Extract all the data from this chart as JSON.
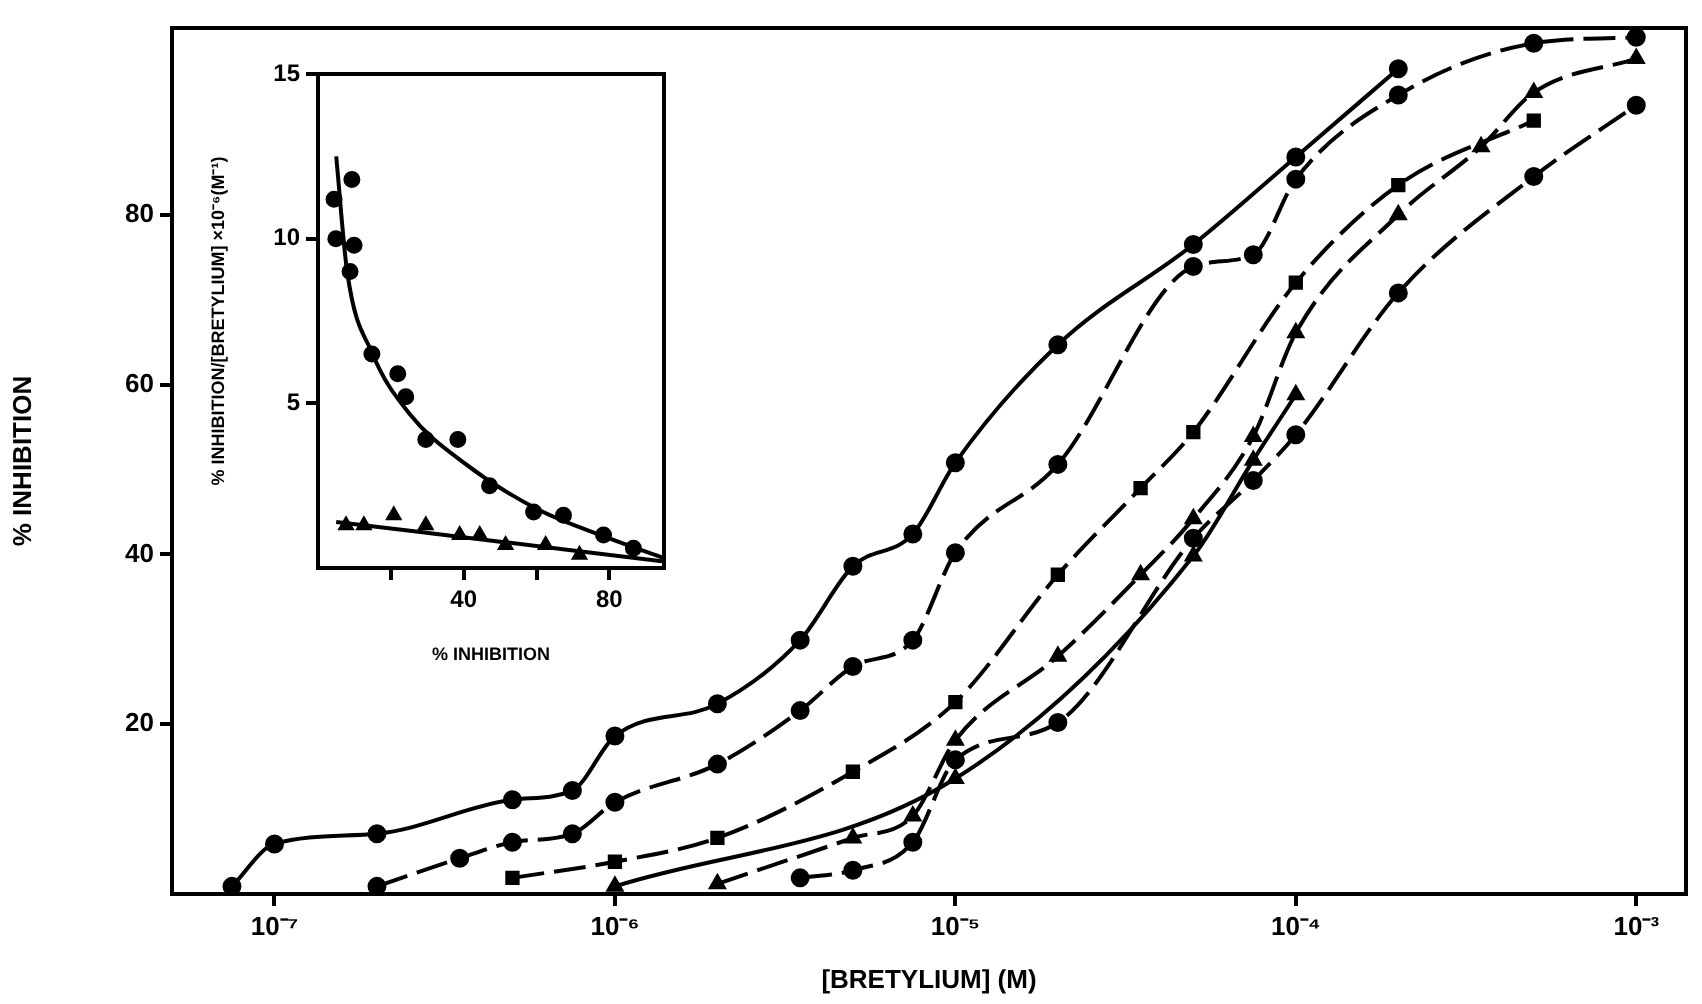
{
  "chart_data": [
    {
      "type": "line",
      "xlabel": "[BRETYLIUM] (M)",
      "ylabel": "% INHIBITION",
      "log": "x",
      "grid": false,
      "legend": false,
      "xlim": [
        5e-08,
        0.0014
      ],
      "ylim": [
        0,
        102
      ],
      "xticks": [
        {
          "value": 1e-07,
          "label": "10⁻⁷"
        },
        {
          "value": 1e-06,
          "label": "10⁻⁶"
        },
        {
          "value": 1e-05,
          "label": "10⁻⁵"
        },
        {
          "value": 0.0001,
          "label": "10⁻⁴"
        },
        {
          "value": 0.001,
          "label": "10⁻³"
        }
      ],
      "yticks": [
        20,
        40,
        60,
        80
      ],
      "series": [
        {
          "color": "#000000",
          "marker": "circle",
          "line_style": "solid",
          "x": [
            7.5e-08,
            1e-07,
            2e-07,
            5e-07,
            7.5e-07,
            1e-06,
            2e-06,
            3.5e-06,
            5e-06,
            7.5e-06,
            1e-05,
            2e-05,
            5e-05,
            0.0001,
            0.0002
          ],
          "values": [
            0.9,
            5.9,
            7.1,
            11.1,
            12.2,
            18.6,
            22.4,
            29.9,
            38.6,
            42.4,
            50.8,
            64.7,
            76.5,
            86.8,
            97.2
          ]
        },
        {
          "color": "#000000",
          "marker": "circle",
          "line_style": "dashed",
          "x": [
            2e-07,
            3.5e-07,
            5e-07,
            7.5e-07,
            1e-06,
            2e-06,
            3.5e-06,
            5e-06,
            7.5e-06,
            1e-05,
            2e-05,
            5e-05,
            7.5e-05,
            0.0001,
            0.0002,
            0.0005,
            0.001
          ],
          "values": [
            0.9,
            4.2,
            6.1,
            7.1,
            10.8,
            15.3,
            21.6,
            26.8,
            29.9,
            40.2,
            50.6,
            73.9,
            75.3,
            84.2,
            94.1,
            100.2,
            100.9
          ]
        },
        {
          "color": "#000000",
          "marker": "square",
          "line_style": "dashed",
          "x": [
            5e-07,
            1e-06,
            2e-06,
            5e-06,
            1e-05,
            2e-05,
            3.5e-05,
            5e-05,
            0.0001,
            0.0002,
            0.0005
          ],
          "values": [
            1.9,
            3.8,
            6.6,
            14.4,
            22.6,
            37.6,
            47.8,
            54.4,
            72.0,
            83.5,
            91.1
          ]
        },
        {
          "color": "#000000",
          "marker": "triangle",
          "line_style": "dashed",
          "x": [
            2e-06,
            5e-06,
            7.5e-06,
            1e-05,
            2e-05,
            3.5e-05,
            5e-05,
            7.5e-05,
            0.0001,
            0.0002,
            0.00035,
            0.0005,
            0.001
          ],
          "values": [
            1.2,
            6.6,
            9.2,
            18.1,
            28.0,
            37.6,
            44.2,
            53.9,
            66.1,
            80.0,
            88.0,
            94.4,
            98.4
          ]
        },
        {
          "color": "#000000",
          "marker": "triangle",
          "line_style": "solid",
          "x": [
            1e-06,
            1e-05,
            5e-05,
            7.5e-05,
            0.0001
          ],
          "values": [
            0.9,
            13.6,
            39.8,
            51.1,
            58.8
          ]
        },
        {
          "color": "#000000",
          "marker": "circle",
          "line_style": "dashed",
          "x": [
            3.5e-06,
            5e-06,
            7.5e-06,
            1e-05,
            2e-05,
            5e-05,
            7.5e-05,
            0.0001,
            0.0002,
            0.0005,
            0.001
          ],
          "values": [
            1.9,
            2.8,
            6.1,
            15.8,
            20.2,
            41.9,
            48.7,
            54.1,
            70.8,
            84.5,
            92.9
          ]
        }
      ]
    },
    {
      "type": "scatter",
      "xlabel": "% INHIBITION",
      "ylabel": "% INHIBITION/[BRETYLIUM] ×10⁻⁶(M⁻¹)",
      "grid": false,
      "legend": false,
      "xlim": [
        0,
        95
      ],
      "ylim": [
        0,
        15
      ],
      "xticks": [
        {
          "value": 20,
          "label": null
        },
        40,
        {
          "value": 60,
          "label": null
        },
        80
      ],
      "yticks": [
        5,
        10,
        15
      ],
      "series": [
        {
          "color": "#000000",
          "marker": "circle",
          "x": [
            4.4,
            4.9,
            9.3,
            9.9,
            8.8,
            14.8,
            21.9,
            24.1,
            29.6,
            38.4,
            47.1,
            59.2,
            67.4,
            78.4,
            86.6
          ],
          "values": [
            11.2,
            10.0,
            11.8,
            9.8,
            9.0,
            6.5,
            5.9,
            5.2,
            3.9,
            3.9,
            2.5,
            1.7,
            1.6,
            1.0,
            0.6
          ]
        },
        {
          "color": "#000000",
          "marker": "triangle",
          "x": [
            7.7,
            12.6,
            20.8,
            29.6,
            38.9,
            44.4,
            51.5,
            62.5,
            71.8
          ],
          "values": [
            1.3,
            1.3,
            1.6,
            1.3,
            1.0,
            1.0,
            0.7,
            0.7,
            0.4
          ]
        },
        {
          "type": "line",
          "color": "#000000",
          "marker": "none",
          "line_style": "solid",
          "x": [
            5,
            8,
            15,
            25,
            40,
            60,
            80,
            95
          ],
          "values": [
            12.5,
            9,
            6.5,
            4.7,
            3.2,
            1.8,
            0.9,
            0.3
          ]
        },
        {
          "type": "line",
          "color": "#000000",
          "marker": "none",
          "line_style": "solid",
          "x": [
            5,
            50,
            95
          ],
          "values": [
            1.4,
            0.8,
            0.2
          ]
        }
      ]
    }
  ]
}
